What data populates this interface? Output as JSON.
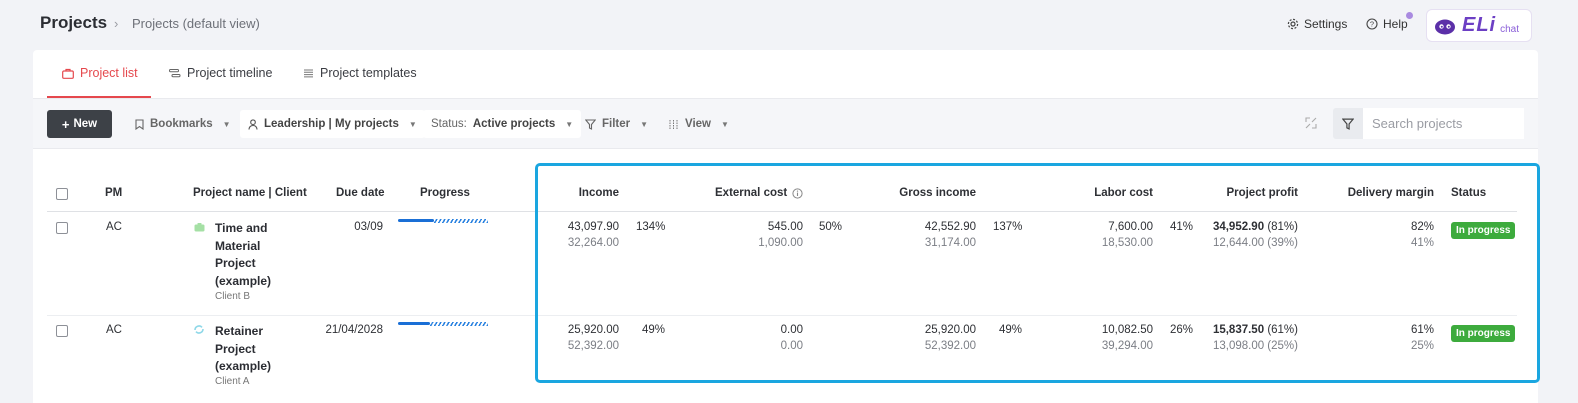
{
  "header": {
    "title": "Projects",
    "separator": "›",
    "breadcrumb": "Projects (default view)",
    "settings_label": "Settings",
    "help_label": "Help",
    "eli_word": "ELi",
    "eli_chat": "chat"
  },
  "tabs": [
    {
      "label": "Project list",
      "active": true,
      "icon": "briefcase-icon"
    },
    {
      "label": "Project timeline",
      "active": false,
      "icon": "timeline-icon"
    },
    {
      "label": "Project templates",
      "active": false,
      "icon": "list-icon"
    }
  ],
  "toolbar": {
    "new_label": "New",
    "bookmarks_label": "Bookmarks",
    "view_scope_label": "Leadership | My projects",
    "status_prefix": "Status:",
    "status_value": "Active projects",
    "filter_label": "Filter",
    "view_label": "View",
    "search_placeholder": "Search projects"
  },
  "table": {
    "headers": {
      "pm": "PM",
      "project": "Project name | Client",
      "due": "Due date",
      "progress": "Progress",
      "income": "Income",
      "external_cost": "External cost",
      "gross_income": "Gross income",
      "labor_cost": "Labor cost",
      "project_profit": "Project profit",
      "delivery_margin": "Delivery margin",
      "status": "Status"
    },
    "rows": [
      {
        "pm": "AC",
        "project_name": "Time and Material Project (example)",
        "client": "Client B",
        "due": "03/09",
        "progress": 0.4,
        "income": "43,097.90",
        "income_sub": "32,264.00",
        "income_pct": "134%",
        "ext_cost": "545.00",
        "ext_cost_sub": "1,090.00",
        "ext_pct": "50%",
        "gross": "42,552.90",
        "gross_sub": "31,174.00",
        "gross_pct": "137%",
        "labor": "7,600.00",
        "labor_sub": "18,530.00",
        "labor_pct": "41%",
        "profit": "34,952.90",
        "profit_pct": "(81%)",
        "profit_sub": "12,644.00 (39%)",
        "margin": "82%",
        "margin_sub": "41%",
        "status": "In progress"
      },
      {
        "pm": "AC",
        "project_name": "Retainer Project (example)",
        "client": "Client A",
        "due": "21/04/2028",
        "progress": 0.35,
        "income": "25,920.00",
        "income_sub": "52,392.00",
        "income_pct": "49%",
        "ext_cost": "0.00",
        "ext_cost_sub": "0.00",
        "ext_pct": "",
        "gross": "25,920.00",
        "gross_sub": "52,392.00",
        "gross_pct": "49%",
        "labor": "10,082.50",
        "labor_sub": "39,294.00",
        "labor_pct": "26%",
        "profit": "15,837.50",
        "profit_pct": "(61%)",
        "profit_sub": "13,098.00 (25%)",
        "margin": "61%",
        "margin_sub": "25%",
        "status": "In progress"
      }
    ]
  },
  "colors": {
    "accent": "#e5484d",
    "status_green": "#3dab3d",
    "highlight": "#1aa6e0",
    "progress_blue": "#1a6fd6"
  }
}
